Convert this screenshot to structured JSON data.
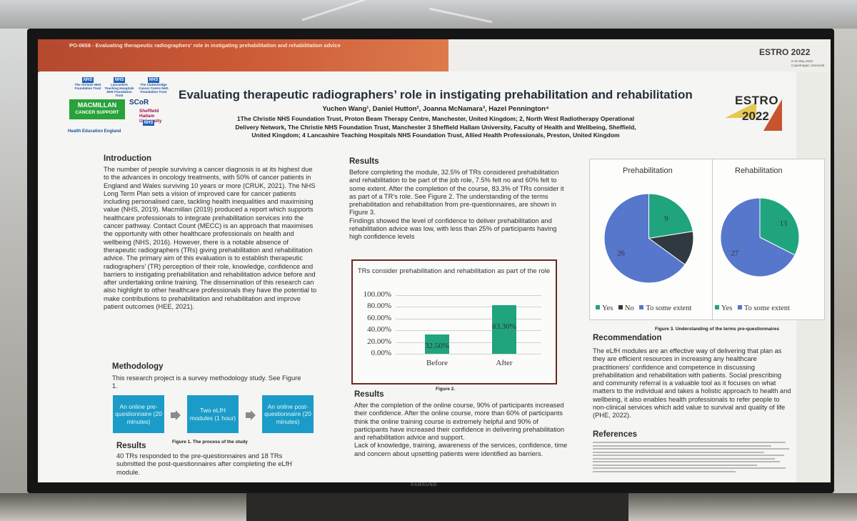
{
  "topbar": {
    "code_line": "PO-0658 - Evaluating therapeutic radiographers' role in instigating prehabilitation and rehabilitation advice",
    "event_logo": "ESTRO 2022",
    "event_dates": "6-10 May 2022 Copenhagen, Denmark"
  },
  "monitor_brand": "SAMSUNG",
  "logos": {
    "nhs": "NHS",
    "christie": "The Christie NHS Foundation Trust",
    "lancashire": "Lancashire Teaching Hospitals NHS Foundation Trust",
    "clatterbridge": "The Clatterbridge Cancer Centre NHS Foundation Trust",
    "macmillan_1": "MACMILLAN",
    "macmillan_2": "CANCER SUPPORT",
    "scor": "SCoR",
    "shu": "Sheffield Hallam University",
    "hee": "Health Education England"
  },
  "poster": {
    "title": "Evaluating therapeutic radiographers’ role in instigating prehabilitation and rehabilitation",
    "authors": "Yuchen Wang¹, Daniel Hutton², Joanna McNamara³, Hazel Pennington⁴",
    "affiliations": "1The Christie NHS Foundation Trust, Proton Beam Therapy Centre, Manchester, United Kingdom; 2, North West Radiotherapy Operational Delivery Network, The Christie NHS Foundation Trust, Manchester 3 Sheffield Hallam University, Faculty of Health and Wellbeing, Sheffield, United Kingdom; 4 Lancashire Teaching Hospitals NHS Foundation Trust, Allied Health Professionals, Preston, United Kingdom",
    "estro_logo": {
      "word": "ESTRO",
      "year": "2022"
    },
    "introduction": {
      "heading": "Introduction",
      "text": "The number of people surviving a cancer diagnosis is at its highest due to the advances in oncology treatments, with 50% of cancer patients in England and Wales surviving 10 years or more (CRUK, 2021). The NHS Long Term Plan sets a vision of improved care for cancer patients including personalised care, tackling health inequalities and maximising value (NHS, 2019). Macmillan (2019) produced a report which supports healthcare professionals to integrate prehabilitation services into the cancer pathway. Contact Count (MECC) is an approach that maximises the opportunity with other healthcare professionals on health and wellbeing (NHS, 2016). However, there is a notable absence of therapeutic radiographers (TRs) giving prehabilitation and rehabilitation advice. The primary aim of this evaluation is to establish therapeutic radiographers’ (TR) perception of their role, knowledge, confidence and barriers to instigating prehabilitation and rehabilitation advice before and after undertaking online training. The dissemination of this research can also highlight to other healthcare professionals they have the potential to make contributions to prehabilitation and rehabilitation and improve patient outcomes (HEE, 2021)."
    },
    "methodology": {
      "heading": "Methodology",
      "text": "This research project is a survey methodology study. See Figure 1.",
      "flow": [
        "An online pre-questionnaire (20 minutes)",
        "Two eLfH modules (1 hour)",
        "An online post-questionnaire (20 minutes)"
      ],
      "caption": "Figure 1. The process of the study"
    },
    "results_left": {
      "heading": "Results",
      "text": "40 TRs responded to the pre-questionnaires and 18 TRs submitted the post-questionnaires after completing the eLfH module."
    },
    "results_mid": {
      "heading": "Results",
      "text": "Before completing the module, 32.5% of TRs considered prehabilitation and rehabilitation to be part of the job role, 7.5% felt no and 60% felt to some extent. After the completion of the course, 83.3% of TRs consider it as part of a TR’s role. See Figure 2. The understanding of the terms prehabilitation and rehabilitation from pre-questionnaires, are shown in Figure 3.\nFindings showed the level of confidence to deliver prehabilitation and rehabilitation advice was low, with less than 25% of participants having high confidence levels"
    },
    "figure2_caption": "Figure 2.",
    "results_bottom": {
      "heading": "Results",
      "text": "After the completion of the online course, 90% of participants increased their confidence. After the online course, more than 60% of participants think the online training course is extremely helpful and 90% of participants have increased their confidence in delivering prehabilitation and rehabilitation advice and support.\nLack of knowledge, training, awareness of the services, confidence, time and concern about upsetting patients were identified as barriers."
    },
    "figure3_caption": "Figure 3. Understanding of the terms pre-questionnaires",
    "recommendation": {
      "heading": "Recommendation",
      "text": "The eLfH modules are an effective way of delivering that plan as they are efficient resources in increasing any healthcare practitioners’ confidence and competence in discussing prehabilitation and rehabilitation with patients. Social prescribing and community referral is a valuable tool as it focuses on what matters to the individual and takes a holistic approach to health and wellbeing, it also enables health professionals to refer people to non-clinical services which add value to survival and quality of life (PHE, 2022)."
    },
    "references_heading": "References"
  },
  "chart_data": [
    {
      "type": "bar",
      "title": "TRs consider prehabilitation and rehabilitation as part of the role",
      "categories": [
        "Before",
        "After"
      ],
      "values": [
        32.5,
        83.3
      ],
      "value_labels": [
        "32.50%",
        "83.30%"
      ],
      "ylim": [
        0,
        100
      ],
      "yticks": [
        "100.00%",
        "80.00%",
        "60.00%",
        "40.00%",
        "20.00%",
        "0.00%"
      ],
      "colors": {
        "bar": "#1fa47e"
      }
    },
    {
      "type": "pie",
      "title": "Prehabilitation",
      "labels": [
        "Yes",
        "No",
        "To some extent"
      ],
      "values": [
        9,
        5,
        26
      ],
      "colors": [
        "#1fa47e",
        "#2f3a40",
        "#5677cc"
      ]
    },
    {
      "type": "pie",
      "title": "Rehabilitation",
      "labels": [
        "Yes",
        "To some extent"
      ],
      "values": [
        13,
        27
      ],
      "colors": [
        "#1fa47e",
        "#5677cc"
      ]
    }
  ]
}
